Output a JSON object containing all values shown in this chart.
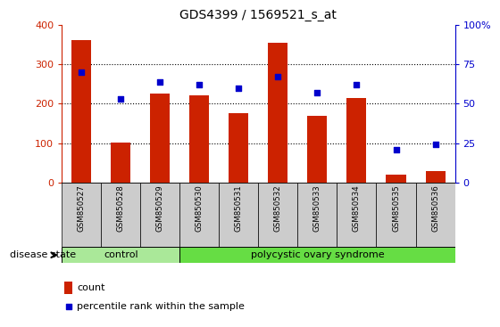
{
  "title": "GDS4399 / 1569521_s_at",
  "samples": [
    "GSM850527",
    "GSM850528",
    "GSM850529",
    "GSM850530",
    "GSM850531",
    "GSM850532",
    "GSM850533",
    "GSM850534",
    "GSM850535",
    "GSM850536"
  ],
  "counts": [
    360,
    102,
    225,
    222,
    175,
    355,
    170,
    215,
    20,
    30
  ],
  "percentiles": [
    70,
    53,
    64,
    62,
    60,
    67,
    57,
    62,
    21,
    24
  ],
  "ylim_left": [
    0,
    400
  ],
  "ylim_right": [
    0,
    100
  ],
  "yticks_left": [
    0,
    100,
    200,
    300,
    400
  ],
  "yticks_right": [
    0,
    25,
    50,
    75,
    100
  ],
  "bar_color": "#cc2200",
  "dot_color": "#0000cc",
  "n_control": 3,
  "control_label": "control",
  "disease_label": "polycystic ovary syndrome",
  "disease_state_label": "disease state",
  "legend_count_label": "count",
  "legend_percentile_label": "percentile rank within the sample",
  "control_color": "#aae899",
  "disease_color": "#66dd44",
  "group_bg_color": "#cccccc",
  "left_tick_color": "#cc2200",
  "right_tick_color": "#0000cc",
  "bar_width": 0.5,
  "fig_width": 5.15,
  "fig_height": 3.54
}
